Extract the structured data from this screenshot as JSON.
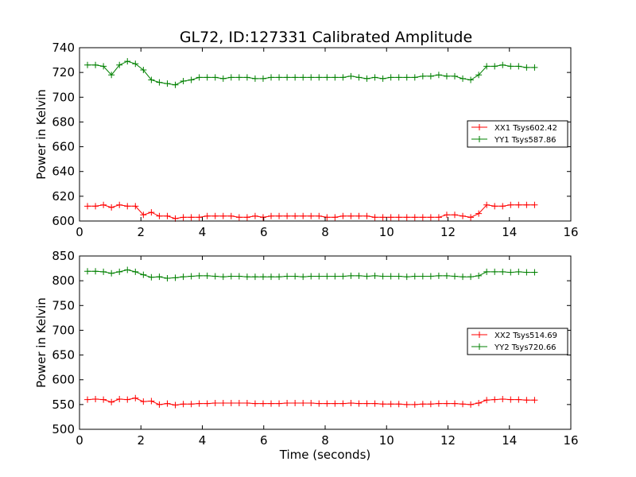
{
  "title": "GL72, ID:127331 Calibrated Amplitude",
  "chart_data": [
    {
      "type": "line",
      "title": "GL72, ID:127331 Calibrated Amplitude",
      "xlabel": "",
      "ylabel": "Power in Kelvin",
      "xlim": [
        0,
        16
      ],
      "ylim": [
        600,
        740
      ],
      "xticks": [
        0,
        2,
        4,
        6,
        8,
        10,
        12,
        14,
        16
      ],
      "yticks": [
        600,
        620,
        640,
        660,
        680,
        700,
        720,
        740
      ],
      "grid": false,
      "legend_position": "right",
      "x": [
        0.26,
        0.52,
        0.78,
        1.04,
        1.3,
        1.56,
        1.82,
        2.08,
        2.34,
        2.6,
        2.86,
        3.12,
        3.38,
        3.64,
        3.9,
        4.16,
        4.42,
        4.68,
        4.94,
        5.2,
        5.46,
        5.72,
        5.98,
        6.24,
        6.5,
        6.76,
        7.02,
        7.28,
        7.54,
        7.8,
        8.06,
        8.32,
        8.58,
        8.84,
        9.1,
        9.36,
        9.62,
        9.88,
        10.14,
        10.4,
        10.66,
        10.92,
        11.18,
        11.44,
        11.7,
        11.96,
        12.22,
        12.48,
        12.74,
        13.0,
        13.26,
        13.52,
        13.78,
        14.04,
        14.3,
        14.56,
        14.82
      ],
      "series": [
        {
          "name": "XX1 Tsys602.42",
          "color": "#ff0000",
          "values": [
            612,
            612,
            613,
            611,
            613,
            612,
            612,
            605,
            607,
            604,
            604,
            602,
            603,
            603,
            603,
            604,
            604,
            604,
            604,
            603,
            603,
            604,
            603,
            604,
            604,
            604,
            604,
            604,
            604,
            604,
            603,
            603,
            604,
            604,
            604,
            604,
            603,
            603,
            603,
            603,
            603,
            603,
            603,
            603,
            603,
            605,
            605,
            604,
            603,
            606,
            613,
            612,
            612,
            613,
            613,
            613,
            613
          ]
        },
        {
          "name": "YY1 Tsys587.86",
          "color": "#008000",
          "values": [
            726,
            726,
            725,
            718,
            726,
            729,
            727,
            722,
            714,
            712,
            711,
            710,
            713,
            714,
            716,
            716,
            716,
            715,
            716,
            716,
            716,
            715,
            715,
            716,
            716,
            716,
            716,
            716,
            716,
            716,
            716,
            716,
            716,
            717,
            716,
            715,
            716,
            715,
            716,
            716,
            716,
            716,
            717,
            717,
            718,
            717,
            717,
            715,
            714,
            718,
            725,
            725,
            726,
            725,
            725,
            724,
            724
          ]
        }
      ]
    },
    {
      "type": "line",
      "title": "",
      "xlabel": "Time (seconds)",
      "ylabel": "Power in Kelvin",
      "xlim": [
        0,
        16
      ],
      "ylim": [
        500,
        850
      ],
      "xticks": [
        0,
        2,
        4,
        6,
        8,
        10,
        12,
        14,
        16
      ],
      "yticks": [
        500,
        550,
        600,
        650,
        700,
        750,
        800,
        850
      ],
      "grid": false,
      "legend_position": "right",
      "x": [
        0.26,
        0.52,
        0.78,
        1.04,
        1.3,
        1.56,
        1.82,
        2.08,
        2.34,
        2.6,
        2.86,
        3.12,
        3.38,
        3.64,
        3.9,
        4.16,
        4.42,
        4.68,
        4.94,
        5.2,
        5.46,
        5.72,
        5.98,
        6.24,
        6.5,
        6.76,
        7.02,
        7.28,
        7.54,
        7.8,
        8.06,
        8.32,
        8.58,
        8.84,
        9.1,
        9.36,
        9.62,
        9.88,
        10.14,
        10.4,
        10.66,
        10.92,
        11.18,
        11.44,
        11.7,
        11.96,
        12.22,
        12.48,
        12.74,
        13.0,
        13.26,
        13.52,
        13.78,
        14.04,
        14.3,
        14.56,
        14.82
      ],
      "series": [
        {
          "name": "XX2 Tsys514.69",
          "color": "#ff0000",
          "values": [
            560,
            561,
            560,
            555,
            561,
            560,
            563,
            556,
            557,
            550,
            552,
            549,
            551,
            551,
            552,
            552,
            553,
            553,
            553,
            553,
            553,
            552,
            552,
            552,
            552,
            553,
            553,
            553,
            553,
            552,
            552,
            552,
            552,
            553,
            552,
            552,
            552,
            551,
            551,
            551,
            550,
            550,
            551,
            551,
            552,
            552,
            552,
            551,
            550,
            553,
            559,
            560,
            561,
            560,
            560,
            559,
            559
          ]
        },
        {
          "name": "YY2 Tsys720.66",
          "color": "#008000",
          "values": [
            819,
            819,
            818,
            815,
            818,
            822,
            818,
            812,
            807,
            808,
            805,
            806,
            808,
            809,
            810,
            810,
            809,
            808,
            809,
            809,
            808,
            808,
            808,
            808,
            808,
            809,
            809,
            808,
            809,
            809,
            809,
            809,
            809,
            810,
            810,
            809,
            810,
            809,
            809,
            809,
            808,
            809,
            809,
            809,
            810,
            810,
            809,
            808,
            808,
            810,
            818,
            818,
            818,
            817,
            818,
            817,
            817
          ]
        }
      ]
    }
  ]
}
